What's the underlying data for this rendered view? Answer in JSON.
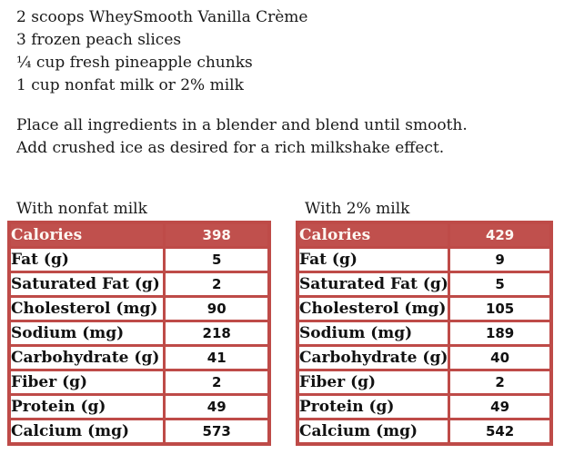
{
  "recipe": {
    "ingredients": [
      "2 scoops WheySmooth Vanilla Crème",
      "3 frozen peach slices",
      "¼ cup fresh pineapple chunks",
      "1 cup nonfat milk or 2% milk"
    ],
    "instructions": [
      "Place all ingredients in a blender and blend until smooth.",
      "Add crushed ice as desired for a rich milkshake effect."
    ]
  },
  "nutrition_tables": [
    {
      "title": "With nonfat milk",
      "rows": [
        {
          "label": "Calories",
          "value": "398"
        },
        {
          "label": "Fat (g)",
          "value": "5"
        },
        {
          "label": "Saturated Fat (g)",
          "value": "2"
        },
        {
          "label": "Cholesterol (mg)",
          "value": "90"
        },
        {
          "label": "Sodium (mg)",
          "value": "218"
        },
        {
          "label": "Carbohydrate (g)",
          "value": "41"
        },
        {
          "label": "Fiber (g)",
          "value": "2"
        },
        {
          "label": "Protein (g)",
          "value": "49"
        },
        {
          "label": "Calcium (mg)",
          "value": "573"
        }
      ]
    },
    {
      "title": "With 2% milk",
      "rows": [
        {
          "label": "Calories",
          "value": "429"
        },
        {
          "label": "Fat (g)",
          "value": "9"
        },
        {
          "label": "Saturated Fat (g)",
          "value": "5"
        },
        {
          "label": "Cholesterol (mg)",
          "value": "105"
        },
        {
          "label": "Sodium (mg)",
          "value": "189"
        },
        {
          "label": "Carbohydrate (g)",
          "value": "40"
        },
        {
          "label": "Fiber (g)",
          "value": "2"
        },
        {
          "label": "Protein (g)",
          "value": "49"
        },
        {
          "label": "Calcium (mg)",
          "value": "542"
        }
      ]
    }
  ],
  "colors": {
    "accent_red": "#C0504D",
    "table_border": "#BE4B48",
    "header_text": "#FDF7F2",
    "body_text": "#1A1A1A"
  }
}
